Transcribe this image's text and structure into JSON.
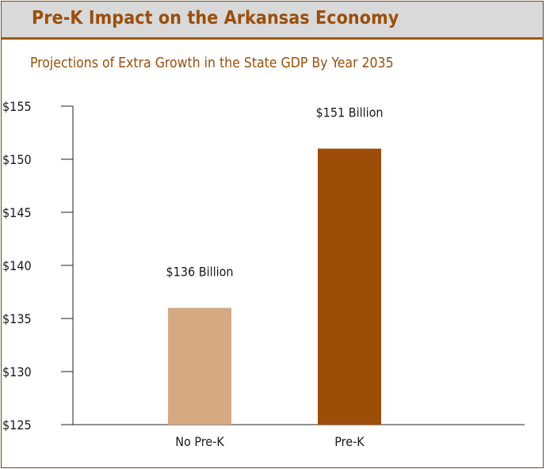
{
  "header": {
    "title": "Pre-K Impact on the Arkansas Economy",
    "subtitle": "Projections of Extra Growth in the State GDP By Year 2035"
  },
  "colors": {
    "title_text": "#9a4f0c",
    "title_bar_bg": "#d9d9d9",
    "title_rule": "#a25912",
    "frame_border": "#6b4a1f"
  },
  "chart_data": {
    "type": "bar",
    "title": "Pre-K Impact on the Arkansas Economy",
    "subtitle": "Projections of Extra Growth in the State GDP By Year 2035",
    "categories": [
      "No Pre-K",
      "Pre-K"
    ],
    "values": [
      136,
      151
    ],
    "data_labels": [
      "$136 Billion",
      "$151 Billion"
    ],
    "bar_colors": [
      "#d5aa83",
      "#9c4d08"
    ],
    "ylim": [
      125,
      155
    ],
    "yticks": [
      125,
      130,
      135,
      140,
      145,
      150,
      155
    ],
    "ytick_labels": [
      "$125",
      "$130",
      "$135",
      "$140",
      "$145",
      "$150",
      "$155"
    ],
    "xlabel": "",
    "ylabel": "",
    "grid": false,
    "legend": "none"
  }
}
